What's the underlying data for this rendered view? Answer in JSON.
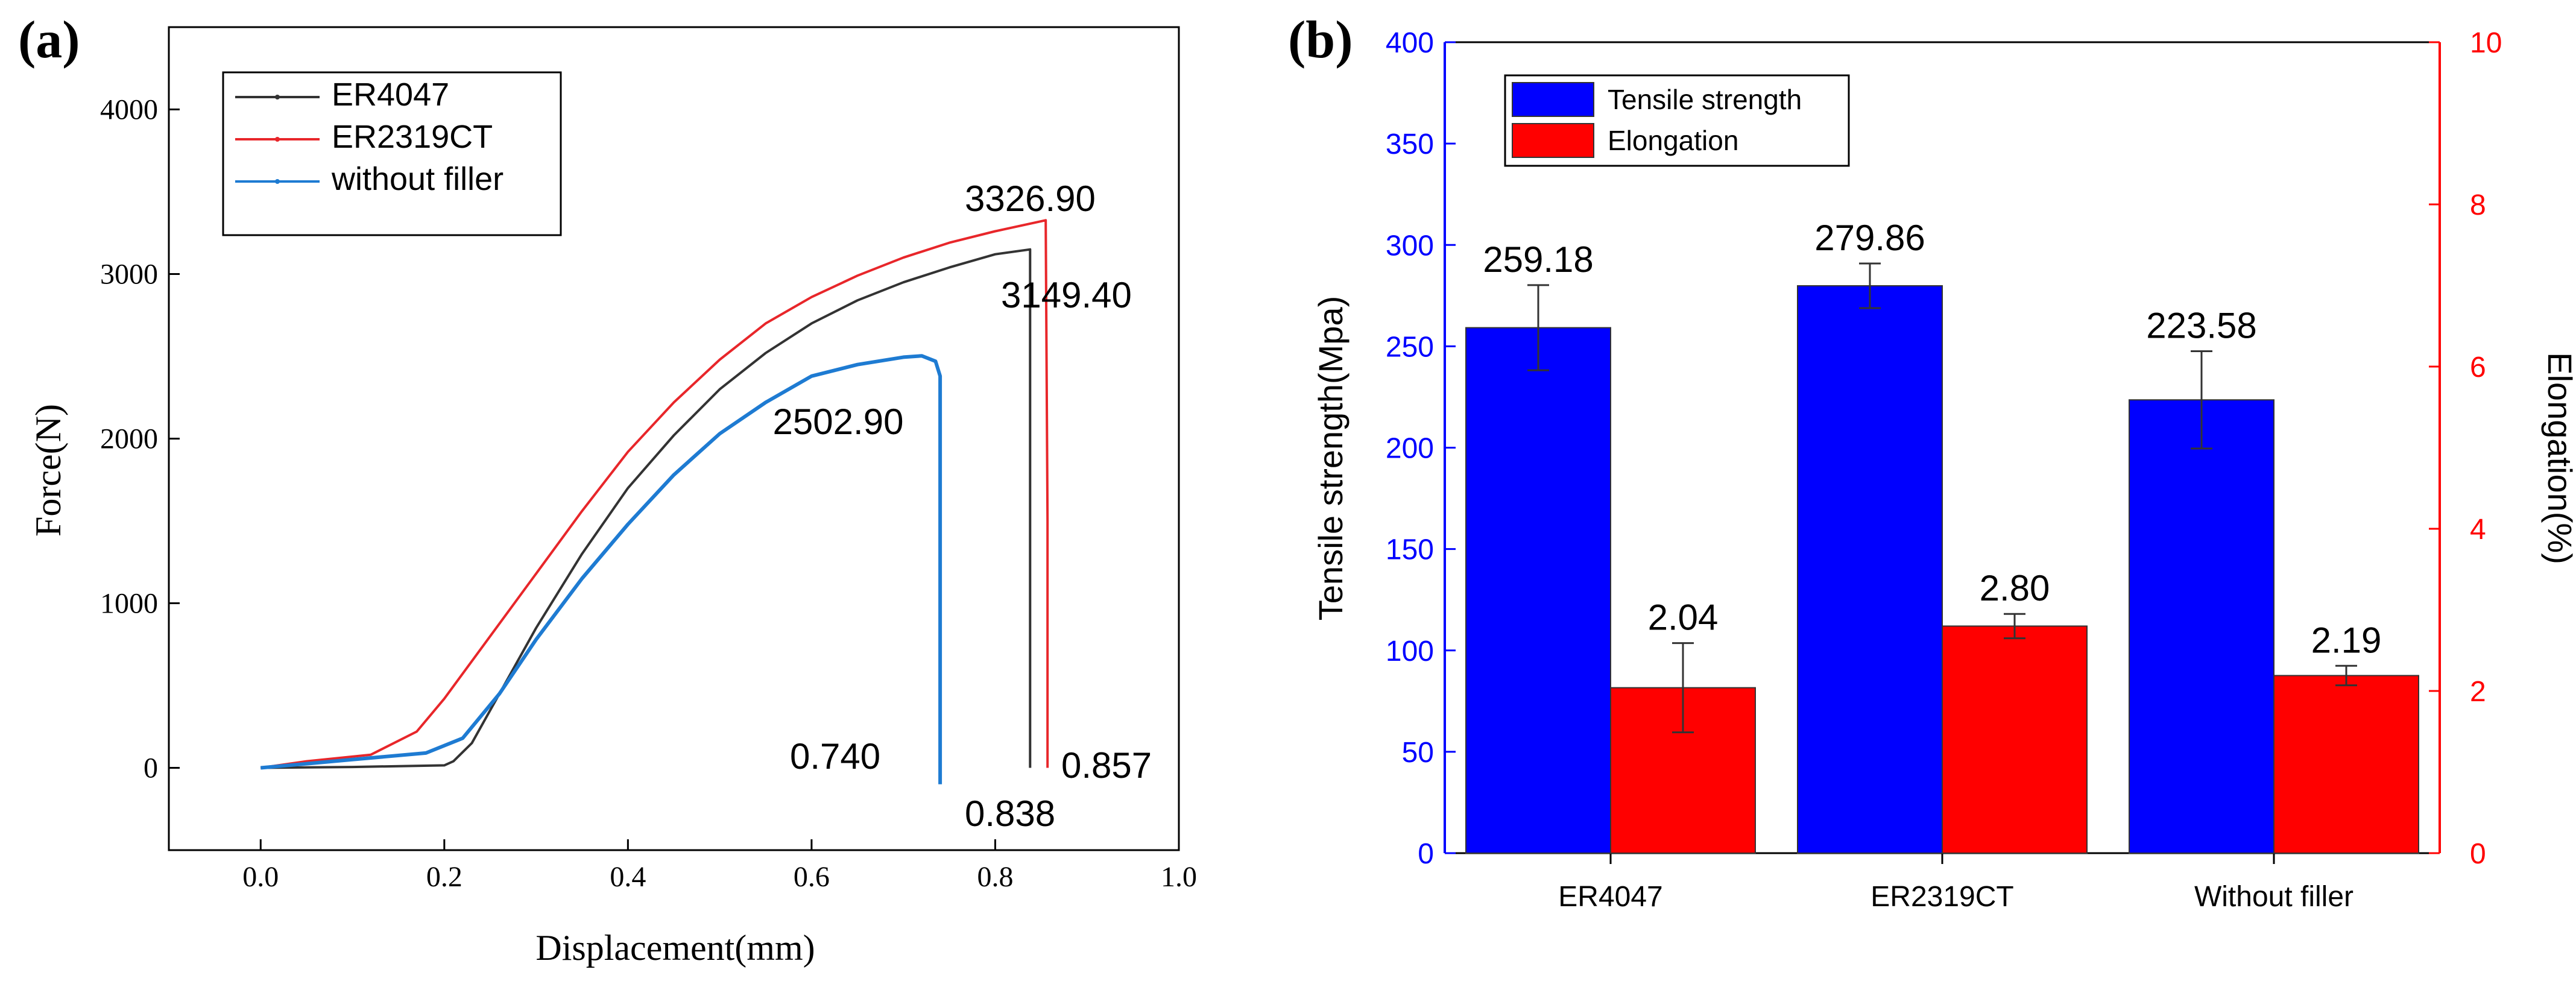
{
  "panel_a": {
    "panel_label": "(a)",
    "chart_data": {
      "type": "line",
      "xlabel": "Displacement(mm)",
      "ylabel": "Force(N)",
      "xlim": [
        -0.1,
        1.0
      ],
      "ylim": [
        -500,
        4500
      ],
      "xticks": [
        "0.0",
        "0.2",
        "0.4",
        "0.6",
        "0.8",
        "1.0"
      ],
      "yticks": [
        "0",
        "1000",
        "2000",
        "3000",
        "4000"
      ],
      "xtick_values": [
        0.0,
        0.2,
        0.4,
        0.6,
        0.8,
        1.0
      ],
      "ytick_values": [
        0,
        1000,
        2000,
        3000,
        4000
      ],
      "legend_position": "top-left",
      "series": [
        {
          "name": "ER4047",
          "color": "#333333",
          "x": [
            0.0,
            0.1,
            0.2,
            0.21,
            0.23,
            0.26,
            0.3,
            0.35,
            0.4,
            0.45,
            0.5,
            0.55,
            0.6,
            0.65,
            0.7,
            0.75,
            0.8,
            0.838,
            0.838,
            0.838
          ],
          "y": [
            0,
            5,
            15,
            40,
            150,
            450,
            850,
            1300,
            1700,
            2020,
            2300,
            2520,
            2700,
            2840,
            2950,
            3040,
            3120,
            3149.4,
            1500,
            0
          ]
        },
        {
          "name": "ER2319CT",
          "color": "#e8262a",
          "x": [
            0.0,
            0.05,
            0.12,
            0.17,
            0.2,
            0.25,
            0.3,
            0.35,
            0.4,
            0.45,
            0.5,
            0.55,
            0.6,
            0.65,
            0.7,
            0.75,
            0.8,
            0.855,
            0.857,
            0.857
          ],
          "y": [
            0,
            40,
            80,
            220,
            420,
            800,
            1180,
            1560,
            1920,
            2220,
            2480,
            2700,
            2860,
            2990,
            3100,
            3190,
            3260,
            3326.9,
            1500,
            0
          ]
        },
        {
          "name": "without filler",
          "color": "#1e7bd2",
          "x": [
            0.0,
            0.1,
            0.18,
            0.22,
            0.26,
            0.3,
            0.35,
            0.4,
            0.45,
            0.5,
            0.55,
            0.6,
            0.65,
            0.7,
            0.72,
            0.735,
            0.74,
            0.74,
            0.74
          ],
          "y": [
            0,
            50,
            90,
            180,
            450,
            780,
            1150,
            1480,
            1780,
            2030,
            2220,
            2380,
            2450,
            2495,
            2502.9,
            2470,
            2380,
            800,
            -100
          ]
        }
      ],
      "annotations": [
        "3326.90",
        "3149.40",
        "2502.90",
        "0.740",
        "0.838",
        "0.857"
      ]
    }
  },
  "panel_b": {
    "panel_label": "(b)",
    "chart_data": {
      "type": "bar",
      "categories": [
        "ER4047",
        "ER2319CT",
        "Without filler"
      ],
      "ylabel": "Tensile strength(Mpa)",
      "ylabel_right": "Elongation(%)",
      "ylim": [
        0,
        400
      ],
      "ylim_right": [
        0,
        10
      ],
      "yticks": [
        "0",
        "50",
        "100",
        "150",
        "200",
        "250",
        "300",
        "350",
        "400"
      ],
      "ytick_values": [
        0,
        50,
        100,
        150,
        200,
        250,
        300,
        350,
        400
      ],
      "yticks_right": [
        "0",
        "2",
        "4",
        "6",
        "8",
        "10"
      ],
      "ytick_values_right": [
        0,
        2,
        4,
        6,
        8,
        10
      ],
      "legend_position": "top-left",
      "series": [
        {
          "name": "Tensile strength",
          "color": "#0000ff",
          "axis": "left",
          "values": [
            259.18,
            279.86,
            223.58
          ],
          "errors": [
            21,
            11,
            24
          ],
          "labels": [
            "259.18",
            "279.86",
            "223.58"
          ]
        },
        {
          "name": "Elongation",
          "color": "#ff0000",
          "axis": "right",
          "values": [
            2.04,
            2.8,
            2.19
          ],
          "errors": [
            0.55,
            0.15,
            0.12
          ],
          "labels": [
            "2.04",
            "2.80",
            "2.19"
          ]
        }
      ],
      "axis_colors": {
        "left": "#0000ff",
        "right": "#ff0000"
      }
    }
  }
}
